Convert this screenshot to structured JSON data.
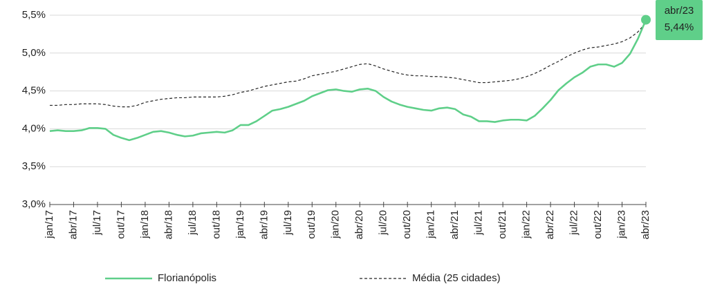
{
  "chart_data": {
    "type": "line",
    "categories": [
      "jan/17",
      null,
      null,
      "abr/17",
      null,
      null,
      "jul/17",
      null,
      null,
      "out/17",
      null,
      null,
      "jan/18",
      null,
      null,
      "abr/18",
      null,
      null,
      "jul/18",
      null,
      null,
      "out/18",
      null,
      null,
      "jan/19",
      null,
      null,
      "abr/19",
      null,
      null,
      "jul/19",
      null,
      null,
      "out/19",
      null,
      null,
      "jan/20",
      null,
      null,
      "abr/20",
      null,
      null,
      "jul/20",
      null,
      null,
      "out/20",
      null,
      null,
      "jan/21",
      null,
      null,
      "abr/21",
      null,
      null,
      "jul/21",
      null,
      null,
      "out/21",
      null,
      null,
      "jan/22",
      null,
      null,
      "abr/22",
      null,
      null,
      "jul/22",
      null,
      null,
      "out/22",
      null,
      null,
      "jan/23",
      null,
      null,
      "abr/23"
    ],
    "series": [
      {
        "name": "Florianópolis",
        "color": "#5fcf89",
        "dash": false,
        "values": [
          3.97,
          3.98,
          3.97,
          3.97,
          3.98,
          4.01,
          4.01,
          4.0,
          3.92,
          3.88,
          3.85,
          3.88,
          3.92,
          3.96,
          3.97,
          3.95,
          3.92,
          3.9,
          3.91,
          3.94,
          3.95,
          3.96,
          3.95,
          3.98,
          4.05,
          4.05,
          4.1,
          4.17,
          4.24,
          4.26,
          4.29,
          4.33,
          4.37,
          4.43,
          4.47,
          4.51,
          4.52,
          4.5,
          4.49,
          4.52,
          4.53,
          4.5,
          4.42,
          4.36,
          4.32,
          4.29,
          4.27,
          4.25,
          4.24,
          4.27,
          4.28,
          4.26,
          4.19,
          4.16,
          4.1,
          4.1,
          4.09,
          4.11,
          4.12,
          4.12,
          4.11,
          4.17,
          4.27,
          4.38,
          4.51,
          4.6,
          4.68,
          4.74,
          4.82,
          4.85,
          4.85,
          4.82,
          4.87,
          4.99,
          5.19,
          5.44
        ],
        "value_labels": [
          null,
          null,
          null,
          null,
          null,
          null,
          null,
          null,
          null,
          null,
          null,
          null,
          null,
          null,
          null,
          null,
          null,
          null,
          null,
          null,
          null,
          null,
          null,
          null,
          null,
          null,
          null,
          null,
          null,
          null,
          null,
          null,
          null,
          null,
          null,
          null,
          null,
          null,
          null,
          null,
          null,
          null,
          null,
          null,
          null,
          null,
          null,
          null,
          null,
          null,
          null,
          null,
          null,
          null,
          null,
          null,
          null,
          null,
          null,
          null,
          null,
          null,
          null,
          null,
          null,
          null,
          null,
          null,
          null,
          null,
          null,
          null,
          null,
          null,
          null,
          "5,44%"
        ]
      },
      {
        "name": "Média (25 cidades)",
        "color": "#222222",
        "dash": true,
        "values": [
          4.31,
          4.31,
          4.32,
          4.32,
          4.33,
          4.33,
          4.33,
          4.32,
          4.3,
          4.29,
          4.29,
          4.31,
          4.35,
          4.37,
          4.39,
          4.4,
          4.41,
          4.41,
          4.42,
          4.42,
          4.42,
          4.42,
          4.43,
          4.45,
          4.48,
          4.5,
          4.53,
          4.56,
          4.58,
          4.6,
          4.62,
          4.63,
          4.66,
          4.7,
          4.72,
          4.74,
          4.76,
          4.79,
          4.82,
          4.85,
          4.86,
          4.83,
          4.79,
          4.76,
          4.73,
          4.71,
          4.7,
          4.7,
          4.69,
          4.69,
          4.68,
          4.67,
          4.65,
          4.63,
          4.61,
          4.61,
          4.62,
          4.63,
          4.64,
          4.66,
          4.69,
          4.73,
          4.78,
          4.84,
          4.89,
          4.95,
          5.0,
          5.04,
          5.07,
          5.08,
          5.1,
          5.12,
          5.15,
          5.2,
          5.28,
          5.4
        ]
      }
    ],
    "ylim": [
      3.0,
      5.5
    ],
    "yticks": [
      {
        "value": 3.0,
        "label": "3,0%"
      },
      {
        "value": 3.5,
        "label": "3,5%"
      },
      {
        "value": 4.0,
        "label": "4,0%"
      },
      {
        "value": 4.5,
        "label": "4,5%"
      },
      {
        "value": 5.0,
        "label": "5,0%"
      },
      {
        "value": 5.5,
        "label": "5,5%"
      }
    ],
    "grid": true,
    "legend": "bottom"
  }
}
